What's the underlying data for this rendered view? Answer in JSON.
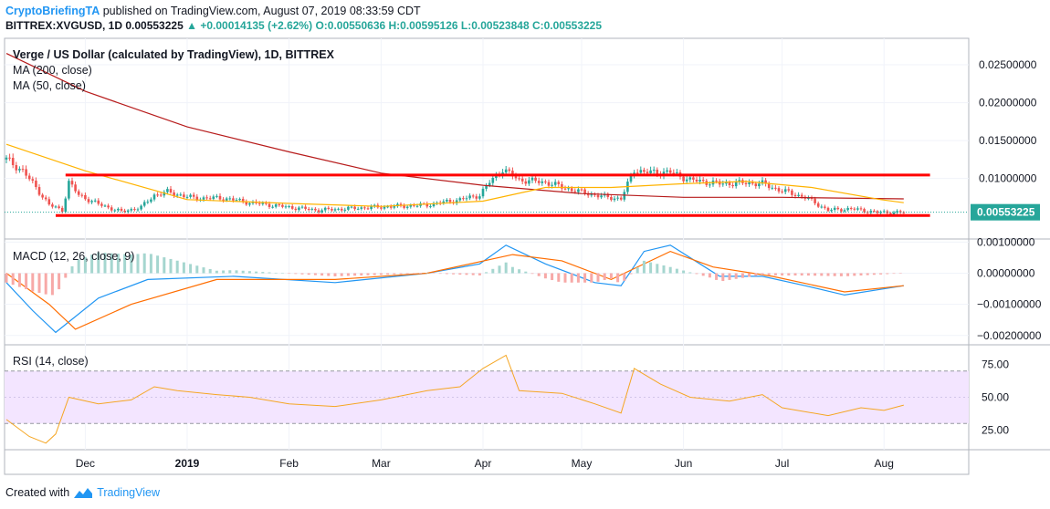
{
  "header": {
    "author": "CryptoBriefingTA",
    "published_text": " published on TradingView.com, August 07, 2019 08:33:59 CDT",
    "symbol_line": "BITTREX:XVGUSD, 1D  0.00553225",
    "change": "+0.00014135 (+2.62%)",
    "ohlc": "O:0.00550636 H:0.00595126 L:0.00523848 C:0.00553225"
  },
  "colors": {
    "up": "#26a69a",
    "down": "#ef5350",
    "ma200": "#b71c1c",
    "ma50": "#ffb300",
    "support_resistance": "#ff0000",
    "macd_line": "#2196f3",
    "signal_line": "#ff6d00",
    "rsi_line": "#f5a623",
    "rsi_band": "#f3e5ff",
    "accent": "#2196f3"
  },
  "chart_data": [
    {
      "type": "candlestick",
      "title": "Verge / US Dollar (calculated by TradingView), 1D, BITTREX",
      "indicators": [
        "MA (200, close)",
        "MA (50, close)"
      ],
      "last_price": "0.00553225",
      "ylim": [
        0.002,
        0.0285
      ],
      "y_ticks": [
        "0.02500000",
        "0.02000000",
        "0.01500000",
        "0.01000000"
      ],
      "x_ticks": [
        "Dec",
        "2019",
        "Feb",
        "Mar",
        "Apr",
        "May",
        "Jun",
        "Jul",
        "Aug"
      ],
      "x_tick_dates": [
        "2018-12-01",
        "2019-01-01",
        "2019-02-01",
        "2019-03-01",
        "2019-04-01",
        "2019-05-01",
        "2019-06-01",
        "2019-07-01",
        "2019-08-01"
      ],
      "x_start": "2018-11-07",
      "resistance": {
        "value": 0.01045,
        "from": "2018-11-25",
        "to": "2019-08-15"
      },
      "support": {
        "value": 0.0051,
        "from": "2018-11-22",
        "to": "2019-08-15"
      },
      "close_points": [
        [
          "2018-11-07",
          0.0125
        ],
        [
          "2018-11-12",
          0.011
        ],
        [
          "2018-11-16",
          0.0088
        ],
        [
          "2018-11-20",
          0.0065
        ],
        [
          "2018-11-24",
          0.0058
        ],
        [
          "2018-11-26",
          0.0095
        ],
        [
          "2018-11-29",
          0.0078
        ],
        [
          "2018-12-05",
          0.0066
        ],
        [
          "2018-12-12",
          0.0056
        ],
        [
          "2018-12-18",
          0.0062
        ],
        [
          "2018-12-22",
          0.0078
        ],
        [
          "2018-12-26",
          0.0082
        ],
        [
          "2019-01-03",
          0.0074
        ],
        [
          "2019-01-12",
          0.0074
        ],
        [
          "2019-01-20",
          0.0068
        ],
        [
          "2019-02-01",
          0.0062
        ],
        [
          "2019-02-10",
          0.0058
        ],
        [
          "2019-02-22",
          0.0061
        ],
        [
          "2019-03-05",
          0.0063
        ],
        [
          "2019-03-15",
          0.0065
        ],
        [
          "2019-03-25",
          0.0072
        ],
        [
          "2019-03-31",
          0.0078
        ],
        [
          "2019-04-03",
          0.0095
        ],
        [
          "2019-04-07",
          0.0112
        ],
        [
          "2019-04-12",
          0.0098
        ],
        [
          "2019-04-20",
          0.0095
        ],
        [
          "2019-04-28",
          0.0085
        ],
        [
          "2019-05-06",
          0.0077
        ],
        [
          "2019-05-13",
          0.0073
        ],
        [
          "2019-05-15",
          0.0092
        ],
        [
          "2019-05-17",
          0.0112
        ],
        [
          "2019-05-20",
          0.0108
        ],
        [
          "2019-05-28",
          0.0108
        ],
        [
          "2019-06-03",
          0.0098
        ],
        [
          "2019-06-12",
          0.0093
        ],
        [
          "2019-06-20",
          0.0094
        ],
        [
          "2019-06-25",
          0.0093
        ],
        [
          "2019-06-30",
          0.0085
        ],
        [
          "2019-07-08",
          0.0075
        ],
        [
          "2019-07-15",
          0.0058
        ],
        [
          "2019-07-22",
          0.006
        ],
        [
          "2019-07-30",
          0.0055
        ],
        [
          "2019-08-07",
          0.0055
        ]
      ],
      "ma200_points": [
        [
          "2018-11-07",
          0.0265
        ],
        [
          "2018-12-01",
          0.0215
        ],
        [
          "2019-01-01",
          0.0168
        ],
        [
          "2019-02-01",
          0.0135
        ],
        [
          "2019-03-01",
          0.0107
        ],
        [
          "2019-04-01",
          0.0091
        ],
        [
          "2019-05-01",
          0.008
        ],
        [
          "2019-06-01",
          0.0075
        ],
        [
          "2019-07-01",
          0.0075
        ],
        [
          "2019-08-07",
          0.0073
        ]
      ],
      "ma50_points": [
        [
          "2018-11-07",
          0.0145
        ],
        [
          "2018-12-01",
          0.011
        ],
        [
          "2019-01-01",
          0.0072
        ],
        [
          "2019-02-01",
          0.0067
        ],
        [
          "2019-03-01",
          0.0063
        ],
        [
          "2019-04-01",
          0.007
        ],
        [
          "2019-04-20",
          0.0088
        ],
        [
          "2019-05-10",
          0.0088
        ],
        [
          "2019-06-01",
          0.0093
        ],
        [
          "2019-06-20",
          0.0096
        ],
        [
          "2019-07-10",
          0.0088
        ],
        [
          "2019-07-31",
          0.0072
        ],
        [
          "2019-08-07",
          0.0068
        ]
      ]
    },
    {
      "type": "line",
      "title": "MACD (12, 26, close, 9)",
      "ylim": [
        -0.0023,
        0.0011
      ],
      "y_ticks": [
        "0.00100000",
        "0.00000000",
        "−0.00100000",
        "−0.00200000"
      ],
      "series": [
        {
          "name": "MACD",
          "points": [
            [
              "2018-11-07",
              -0.0003
            ],
            [
              "2018-11-15",
              -0.0012
            ],
            [
              "2018-11-22",
              -0.0019
            ],
            [
              "2018-12-05",
              -0.0008
            ],
            [
              "2018-12-20",
              -0.0002
            ],
            [
              "2019-01-15",
              -0.0001
            ],
            [
              "2019-02-15",
              -0.0003
            ],
            [
              "2019-03-15",
              0
            ],
            [
              "2019-03-31",
              0.0003
            ],
            [
              "2019-04-08",
              0.0009
            ],
            [
              "2019-04-20",
              0.0003
            ],
            [
              "2019-05-05",
              -0.0003
            ],
            [
              "2019-05-13",
              -0.0004
            ],
            [
              "2019-05-20",
              0.0007
            ],
            [
              "2019-05-28",
              0.0009
            ],
            [
              "2019-06-12",
              -0.0001
            ],
            [
              "2019-06-25",
              -0.0001
            ],
            [
              "2019-07-08",
              -0.0004
            ],
            [
              "2019-07-20",
              -0.0007
            ],
            [
              "2019-08-07",
              -0.0004
            ]
          ]
        },
        {
          "name": "Signal",
          "points": [
            [
              "2018-11-07",
              0
            ],
            [
              "2018-11-20",
              -0.001
            ],
            [
              "2018-11-28",
              -0.0018
            ],
            [
              "2018-12-15",
              -0.001
            ],
            [
              "2019-01-10",
              -0.0002
            ],
            [
              "2019-02-15",
              -0.0002
            ],
            [
              "2019-03-15",
              0
            ],
            [
              "2019-04-10",
              0.0006
            ],
            [
              "2019-04-25",
              0.0004
            ],
            [
              "2019-05-10",
              -0.0002
            ],
            [
              "2019-05-28",
              0.0007
            ],
            [
              "2019-06-10",
              0.0002
            ],
            [
              "2019-06-28",
              -0.0001
            ],
            [
              "2019-07-20",
              -0.0006
            ],
            [
              "2019-08-07",
              -0.0004
            ]
          ]
        }
      ]
    },
    {
      "type": "line",
      "title": "RSI (14, close)",
      "ylim": [
        10,
        90
      ],
      "y_ticks": [
        "75.00",
        "50.00",
        "25.00"
      ],
      "band": [
        30,
        70
      ],
      "series": [
        {
          "name": "RSI",
          "points": [
            [
              "2018-11-07",
              33
            ],
            [
              "2018-11-14",
              20
            ],
            [
              "2018-11-19",
              15
            ],
            [
              "2018-11-22",
              22
            ],
            [
              "2018-11-26",
              50
            ],
            [
              "2018-12-05",
              45
            ],
            [
              "2018-12-15",
              48
            ],
            [
              "2018-12-22",
              58
            ],
            [
              "2018-12-29",
              55
            ],
            [
              "2019-01-10",
              52
            ],
            [
              "2019-01-20",
              50
            ],
            [
              "2019-02-01",
              45
            ],
            [
              "2019-02-15",
              43
            ],
            [
              "2019-03-01",
              48
            ],
            [
              "2019-03-15",
              55
            ],
            [
              "2019-03-25",
              58
            ],
            [
              "2019-04-01",
              72
            ],
            [
              "2019-04-08",
              82
            ],
            [
              "2019-04-12",
              55
            ],
            [
              "2019-04-25",
              53
            ],
            [
              "2019-05-05",
              45
            ],
            [
              "2019-05-13",
              38
            ],
            [
              "2019-05-17",
              72
            ],
            [
              "2019-05-25",
              60
            ],
            [
              "2019-06-03",
              50
            ],
            [
              "2019-06-15",
              47
            ],
            [
              "2019-06-25",
              52
            ],
            [
              "2019-07-01",
              42
            ],
            [
              "2019-07-15",
              36
            ],
            [
              "2019-07-25",
              42
            ],
            [
              "2019-08-01",
              40
            ],
            [
              "2019-08-07",
              44
            ]
          ]
        }
      ]
    }
  ],
  "footer": {
    "created_with": "Created with",
    "brand": "TradingView"
  }
}
